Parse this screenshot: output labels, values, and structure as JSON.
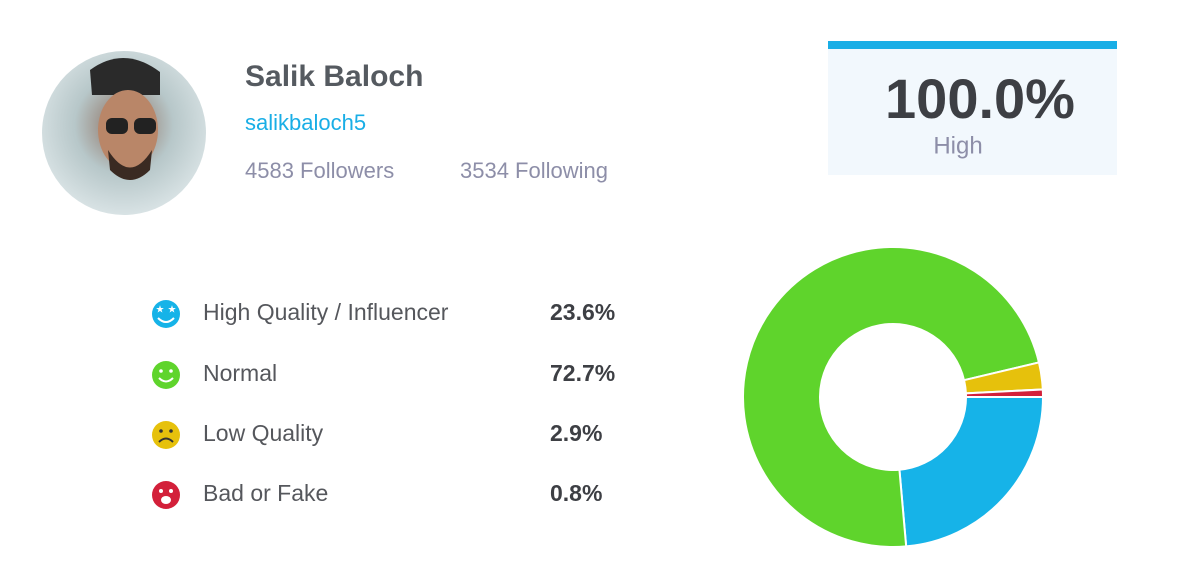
{
  "profile": {
    "name": "Salik Baloch",
    "username": "salikbaloch5",
    "followers": "4583 Followers",
    "following": "3534 Following"
  },
  "score": {
    "value": "100.0%",
    "label": "High"
  },
  "chart_data": {
    "type": "pie",
    "categories": [
      "High Quality / Influencer",
      "Normal",
      "Low Quality",
      "Bad or Fake"
    ],
    "values": [
      23.6,
      72.7,
      2.9,
      0.8
    ],
    "value_labels": [
      "23.6%",
      "72.7%",
      "2.9%",
      "0.8%"
    ],
    "colors": [
      "#16b3e8",
      "#5fd42c",
      "#e6c10c",
      "#d3203a"
    ]
  }
}
